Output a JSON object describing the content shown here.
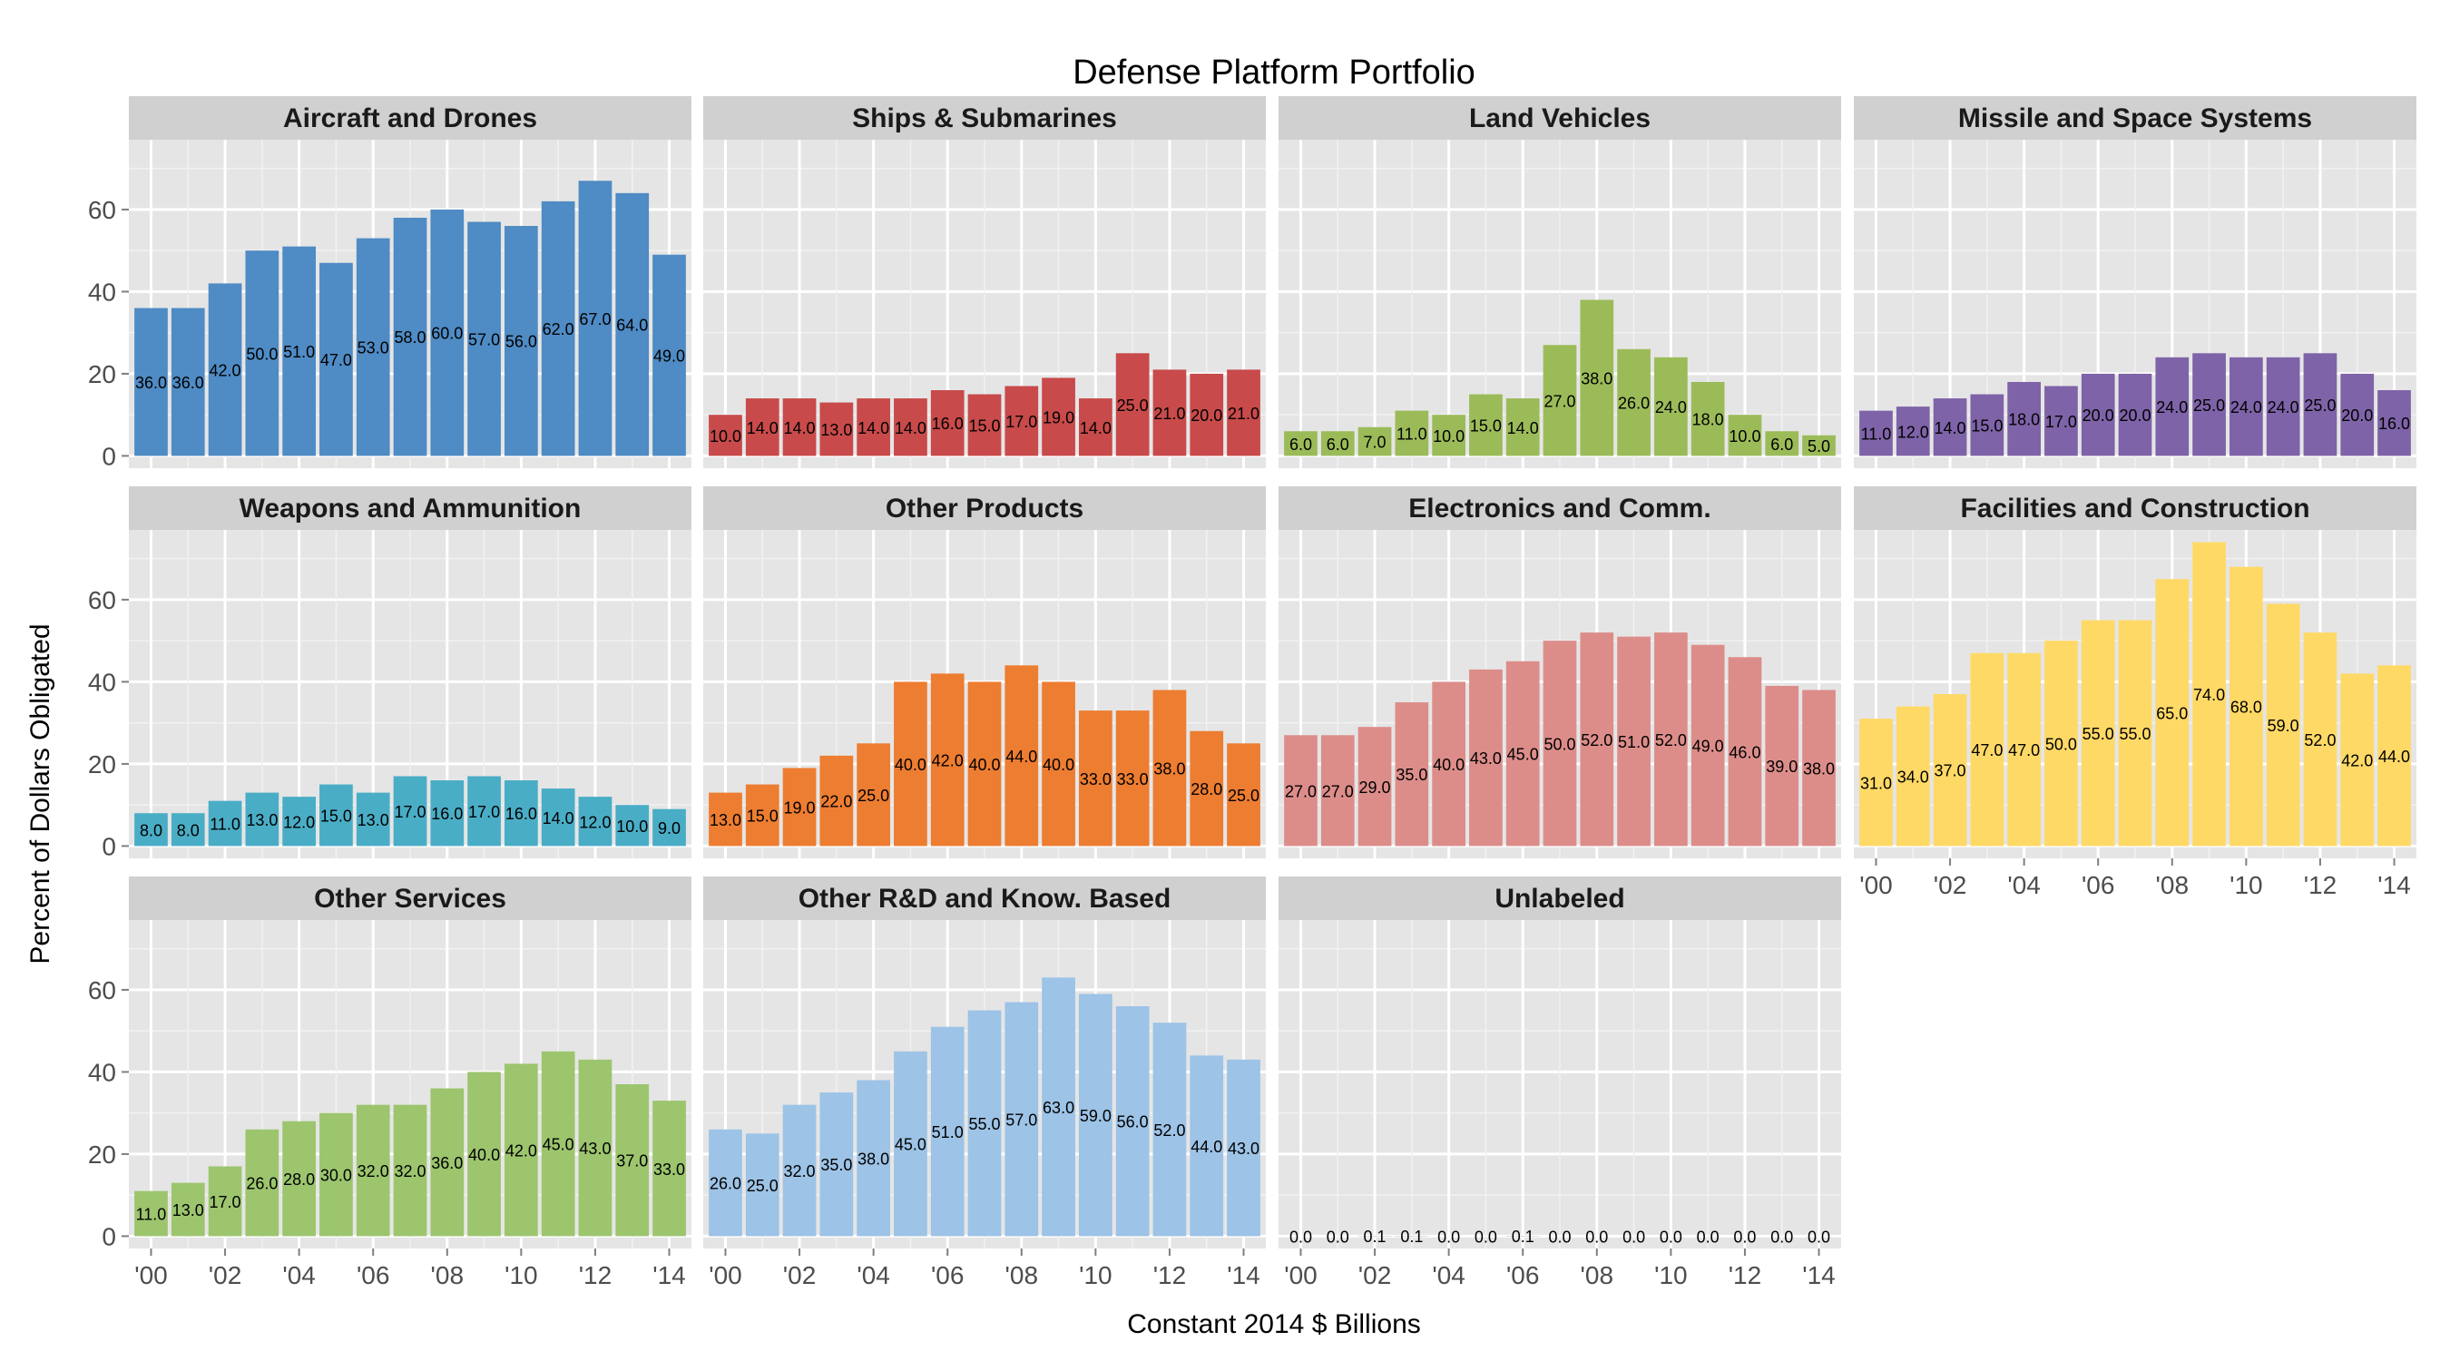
{
  "chart_data": {
    "type": "bar",
    "title": "Defense Platform Portfolio",
    "xlabel": "Constant 2014 $ Billions",
    "ylabel": "Percent of Dollars Obligated",
    "x": [
      2000,
      2001,
      2002,
      2003,
      2004,
      2005,
      2006,
      2007,
      2008,
      2009,
      2010,
      2011,
      2012,
      2013,
      2014
    ],
    "x_tick_labels": [
      "'00",
      "'02",
      "'04",
      "'06",
      "'08",
      "'10",
      "'12",
      "'14"
    ],
    "x_tick_values": [
      2000,
      2002,
      2004,
      2006,
      2008,
      2010,
      2012,
      2014
    ],
    "y_ticks": [
      0,
      20,
      40,
      60
    ],
    "ylim": [
      -3,
      77
    ],
    "grid": true,
    "panels": [
      {
        "name": "Aircraft and Drones",
        "color": "#4f8bc4",
        "values": [
          36,
          36,
          42,
          50,
          51,
          47,
          53,
          58,
          60,
          57,
          56,
          62,
          67,
          64,
          49
        ],
        "labels": [
          "36.0",
          "36.0",
          "42.0",
          "50.0",
          "51.0",
          "47.0",
          "53.0",
          "58.0",
          "60.0",
          "57.0",
          "56.0",
          "62.0",
          "67.0",
          "64.0",
          "49.0"
        ]
      },
      {
        "name": "Ships & Submarines",
        "color": "#c84a4a",
        "values": [
          10,
          14,
          14,
          13,
          14,
          14,
          16,
          15,
          17,
          19,
          14,
          25,
          21,
          20,
          21
        ],
        "labels": [
          "10.0",
          "14.0",
          "14.0",
          "13.0",
          "14.0",
          "14.0",
          "16.0",
          "15.0",
          "17.0",
          "19.0",
          "14.0",
          "25.0",
          "21.0",
          "20.0",
          "21.0"
        ]
      },
      {
        "name": "Land Vehicles",
        "color": "#9bbb59",
        "values": [
          6,
          6,
          7,
          11,
          10,
          15,
          14,
          27,
          38,
          26,
          24,
          18,
          10,
          6,
          5
        ],
        "labels": [
          "6.0",
          "6.0",
          "7.0",
          "11.0",
          "10.0",
          "15.0",
          "14.0",
          "27.0",
          "38.0",
          "26.0",
          "24.0",
          "18.0",
          "10.0",
          "6.0",
          "5.0"
        ]
      },
      {
        "name": "Missile and Space Systems",
        "color": "#7e63a8",
        "values": [
          11,
          12,
          14,
          15,
          18,
          17,
          20,
          20,
          24,
          25,
          24,
          24,
          25,
          20,
          16
        ],
        "labels": [
          "11.0",
          "12.0",
          "14.0",
          "15.0",
          "18.0",
          "17.0",
          "20.0",
          "20.0",
          "24.0",
          "25.0",
          "24.0",
          "24.0",
          "25.0",
          "20.0",
          "16.0"
        ]
      },
      {
        "name": "Weapons and Ammunition",
        "color": "#4aadc6",
        "values": [
          8,
          8,
          11,
          13,
          12,
          15,
          13,
          17,
          16,
          17,
          16,
          14,
          12,
          10,
          9
        ],
        "labels": [
          "8.0",
          "8.0",
          "11.0",
          "13.0",
          "12.0",
          "15.0",
          "13.0",
          "17.0",
          "16.0",
          "17.0",
          "16.0",
          "14.0",
          "12.0",
          "10.0",
          "9.0"
        ]
      },
      {
        "name": "Other Products",
        "color": "#ed7d31",
        "values": [
          13,
          15,
          19,
          22,
          25,
          40,
          42,
          40,
          44,
          40,
          33,
          33,
          38,
          28,
          25
        ],
        "labels": [
          "13.0",
          "15.0",
          "19.0",
          "22.0",
          "25.0",
          "40.0",
          "42.0",
          "40.0",
          "44.0",
          "40.0",
          "33.0",
          "33.0",
          "38.0",
          "28.0",
          "25.0"
        ]
      },
      {
        "name": "Electronics and Comm.",
        "color": "#dc8d8a",
        "values": [
          27,
          27,
          29,
          35,
          40,
          43,
          45,
          50,
          52,
          51,
          52,
          49,
          46,
          39,
          38
        ],
        "labels": [
          "27.0",
          "27.0",
          "29.0",
          "35.0",
          "40.0",
          "43.0",
          "45.0",
          "50.0",
          "52.0",
          "51.0",
          "52.0",
          "49.0",
          "46.0",
          "39.0",
          "38.0"
        ]
      },
      {
        "name": "Facilities and Construction",
        "color": "#ffd966",
        "values": [
          31,
          34,
          37,
          47,
          47,
          50,
          55,
          55,
          65,
          74,
          68,
          59,
          52,
          42,
          44
        ],
        "labels": [
          "31.0",
          "34.0",
          "37.0",
          "47.0",
          "47.0",
          "50.0",
          "55.0",
          "55.0",
          "65.0",
          "74.0",
          "68.0",
          "59.0",
          "52.0",
          "42.0",
          "44.0"
        ]
      },
      {
        "name": "Other Services",
        "color": "#9cc56e",
        "values": [
          11,
          13,
          17,
          26,
          28,
          30,
          32,
          32,
          36,
          40,
          42,
          45,
          43,
          37,
          33
        ],
        "labels": [
          "11.0",
          "13.0",
          "17.0",
          "26.0",
          "28.0",
          "30.0",
          "32.0",
          "32.0",
          "36.0",
          "40.0",
          "42.0",
          "45.0",
          "43.0",
          "37.0",
          "33.0"
        ]
      },
      {
        "name": "Other R&D and Know. Based",
        "color": "#9dc3e6",
        "values": [
          26,
          25,
          32,
          35,
          38,
          45,
          51,
          55,
          57,
          63,
          59,
          56,
          52,
          44,
          43
        ],
        "labels": [
          "26.0",
          "25.0",
          "32.0",
          "35.0",
          "38.0",
          "45.0",
          "51.0",
          "55.0",
          "57.0",
          "63.0",
          "59.0",
          "56.0",
          "52.0",
          "44.0",
          "43.0"
        ]
      },
      {
        "name": "Unlabeled",
        "color": "#b0b0b0",
        "values": [
          0,
          0,
          0.1,
          0.1,
          0,
          0,
          0.1,
          0,
          0,
          0,
          0,
          0,
          0,
          0,
          0
        ],
        "labels": [
          "0.0",
          "0.0",
          "0.1",
          "0.1",
          "0.0",
          "0.0",
          "0.1",
          "0.0",
          "0.0",
          "0.0",
          "0.0",
          "0.0",
          "0.0",
          "0.0",
          "0.0"
        ]
      }
    ]
  }
}
